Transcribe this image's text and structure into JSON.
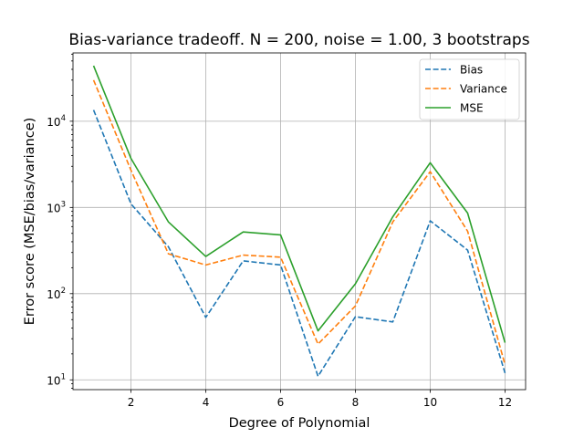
{
  "chart_data": {
    "type": "line",
    "title": "Bias-variance tradeoff. N = 200, noise = 1.00, 3 bootstraps",
    "xlabel": "Degree of Polynomial",
    "ylabel": "Error score (MSE/bias/variance)",
    "x": [
      1,
      2,
      3,
      4,
      5,
      6,
      7,
      8,
      9,
      10,
      11,
      12
    ],
    "xlim": [
      0.45,
      12.55
    ],
    "ylim": [
      7.7,
      62000
    ],
    "yscale": "log",
    "xticks": [
      2,
      4,
      6,
      8,
      10,
      12
    ],
    "xtick_labels": [
      "2",
      "4",
      "6",
      "8",
      "10",
      "12"
    ],
    "yticks": [
      10,
      100,
      1000,
      10000
    ],
    "ytick_labels": [
      {
        "base": "10",
        "exp": "1"
      },
      {
        "base": "10",
        "exp": "2"
      },
      {
        "base": "10",
        "exp": "3"
      },
      {
        "base": "10",
        "exp": "4"
      }
    ],
    "grid": true,
    "legend_position": "top-right",
    "series": [
      {
        "name": "Bias",
        "color": "#1f77b4",
        "linestyle": "dashed",
        "values": [
          13500,
          1100,
          350,
          53,
          240,
          215,
          11,
          54,
          47,
          700,
          320,
          12
        ]
      },
      {
        "name": "Variance",
        "color": "#ff7f0e",
        "linestyle": "dashed",
        "values": [
          30000,
          2700,
          290,
          215,
          280,
          265,
          26,
          72,
          680,
          2600,
          530,
          15
        ]
      },
      {
        "name": "MSE",
        "color": "#2ca02c",
        "linestyle": "solid",
        "values": [
          44000,
          3700,
          680,
          270,
          520,
          480,
          37,
          130,
          780,
          3300,
          860,
          27
        ]
      }
    ]
  }
}
